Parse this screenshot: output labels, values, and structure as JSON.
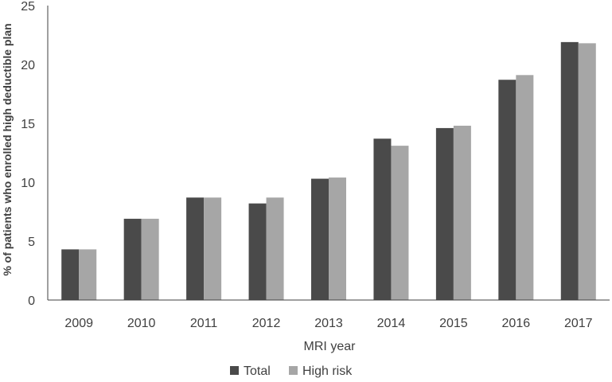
{
  "chart_data": {
    "type": "bar",
    "categories": [
      "2009",
      "2010",
      "2011",
      "2012",
      "2013",
      "2014",
      "2015",
      "2016",
      "2017"
    ],
    "series": [
      {
        "name": "Total",
        "values": [
          4.3,
          6.9,
          8.7,
          8.2,
          10.3,
          13.7,
          14.6,
          18.7,
          21.9
        ],
        "color": "#4a4a4a"
      },
      {
        "name": "High risk",
        "values": [
          4.3,
          6.9,
          8.7,
          8.7,
          10.4,
          13.1,
          14.8,
          19.1,
          21.8
        ],
        "color": "#a6a6a6"
      }
    ],
    "xlabel": "MRI year",
    "ylabel": "% of patients who enrolled high deductible plan",
    "ylim": [
      0,
      25
    ],
    "yticks": [
      0,
      5,
      10,
      15,
      20,
      25
    ],
    "grid": false,
    "legend_position": "bottom-center"
  }
}
